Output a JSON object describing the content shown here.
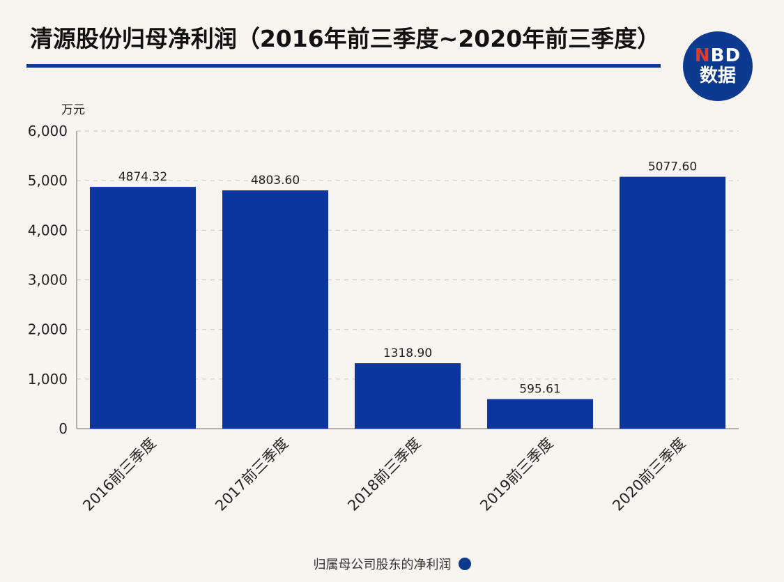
{
  "title": "清源股份归母净利润（2016年前三季度~2020年前三季度）",
  "logo": {
    "top_n": "N",
    "top_rest": "BD",
    "bottom": "数据"
  },
  "chart_data": {
    "type": "bar",
    "title": "清源股份归母净利润（2016年前三季度~2020年前三季度）",
    "ylabel": "万元",
    "ylim": [
      0,
      6000
    ],
    "yticks": [
      0,
      1000,
      2000,
      3000,
      4000,
      5000,
      6000
    ],
    "ytick_labels": [
      "0",
      "1,000",
      "2,000",
      "3,000",
      "4,000",
      "5,000",
      "6,000"
    ],
    "categories": [
      "2016前三季度",
      "2017前三季度",
      "2018前三季度",
      "2019前三季度",
      "2020前三季度"
    ],
    "series": [
      {
        "name": "归属母公司股东的净利润",
        "values": [
          4874.32,
          4803.6,
          1318.9,
          595.61,
          5077.6
        ],
        "labels": [
          "4874.32",
          "4803.60",
          "1318.90",
          "595.61",
          "5077.60"
        ]
      }
    ],
    "grid": true,
    "legend_position": "bottom",
    "color": "#0d35a0"
  }
}
